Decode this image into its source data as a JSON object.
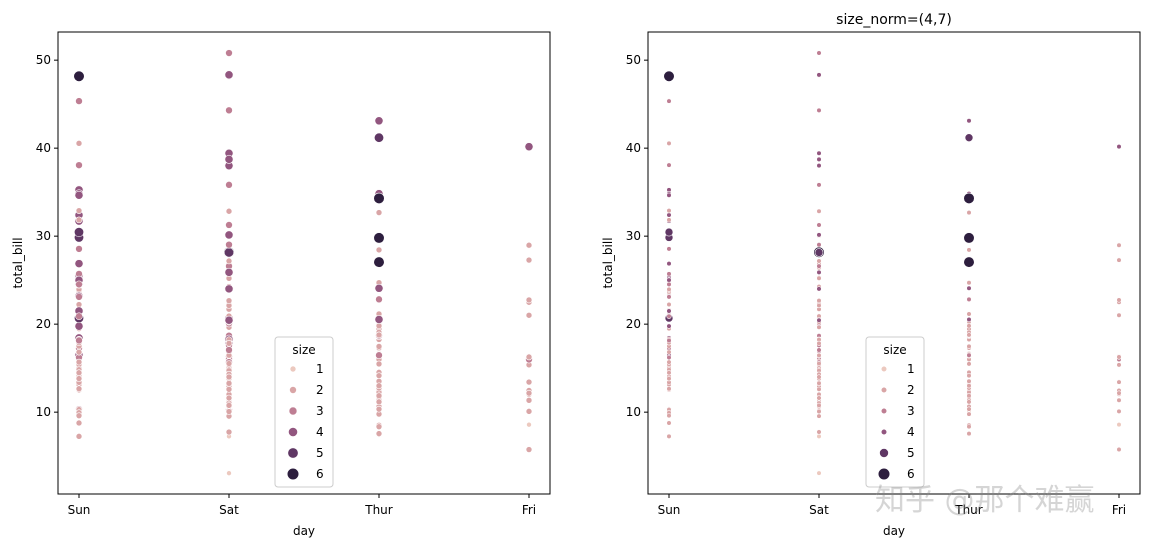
{
  "watermark": "知乎 @那个难赢",
  "palette": {
    "1": "#ecc9bf",
    "2": "#d9a5a6",
    "3": "#be7e93",
    "4": "#92567f",
    "5": "#5f3764",
    "6": "#2d1e3e"
  },
  "chart_data": [
    {
      "type": "scatter",
      "title": "",
      "xlabel": "day",
      "ylabel": "total_bill",
      "categories": [
        "Sun",
        "Sat",
        "Thur",
        "Fri"
      ],
      "ylim": [
        0.7,
        53.2
      ],
      "yticks": [
        10,
        20,
        30,
        40,
        50
      ],
      "grid": false,
      "legend": {
        "title": "size",
        "position": "lower-center",
        "entries": [
          "1",
          "2",
          "3",
          "4",
          "5",
          "6"
        ]
      },
      "size_marker_px": {
        "1": 5,
        "2": 6,
        "3": 7,
        "4": 8.2,
        "5": 9.4,
        "6": 10.6
      }
    },
    {
      "type": "scatter",
      "title": "size_norm=(4,7)",
      "xlabel": "day",
      "ylabel": "total_bill",
      "categories": [
        "Sun",
        "Sat",
        "Thur",
        "Fri"
      ],
      "ylim": [
        0.7,
        53.2
      ],
      "yticks": [
        10,
        20,
        30,
        40,
        50
      ],
      "grid": false,
      "legend": {
        "title": "size",
        "position": "lower-center",
        "entries": [
          "1",
          "2",
          "3",
          "4",
          "5",
          "6"
        ]
      },
      "size_marker_px": {
        "1": 4.6,
        "2": 4.6,
        "3": 4.6,
        "4": 4.6,
        "5": 8,
        "6": 10.6
      }
    }
  ],
  "points": {
    "Sun": [
      [
        16.99,
        2
      ],
      [
        10.34,
        3
      ],
      [
        21.01,
        3
      ],
      [
        23.68,
        2
      ],
      [
        24.59,
        4
      ],
      [
        25.29,
        4
      ],
      [
        8.77,
        2
      ],
      [
        26.88,
        4
      ],
      [
        15.04,
        2
      ],
      [
        14.78,
        2
      ],
      [
        10.27,
        2
      ],
      [
        35.26,
        4
      ],
      [
        15.42,
        2
      ],
      [
        18.43,
        4
      ],
      [
        14.83,
        2
      ],
      [
        21.58,
        2
      ],
      [
        17.46,
        2
      ],
      [
        13.94,
        2
      ],
      [
        9.68,
        2
      ],
      [
        30.4,
        4
      ],
      [
        18.29,
        2
      ],
      [
        22.23,
        2
      ],
      [
        32.4,
        4
      ],
      [
        28.55,
        3
      ],
      [
        18.04,
        2
      ],
      [
        12.54,
        2
      ],
      [
        10.29,
        2
      ],
      [
        34.81,
        4
      ],
      [
        9.94,
        2
      ],
      [
        25.56,
        4
      ],
      [
        19.49,
        2
      ],
      [
        38.07,
        3
      ],
      [
        23.95,
        2
      ],
      [
        25.71,
        3
      ],
      [
        17.31,
        2
      ],
      [
        29.93,
        4
      ],
      [
        14.07,
        2
      ],
      [
        13.13,
        2
      ],
      [
        17.26,
        3
      ],
      [
        24.55,
        4
      ],
      [
        19.77,
        4
      ],
      [
        29.85,
        5
      ],
      [
        48.17,
        6
      ],
      [
        25.0,
        4
      ],
      [
        13.39,
        2
      ],
      [
        16.49,
        4
      ],
      [
        21.5,
        4
      ],
      [
        12.66,
        2
      ],
      [
        16.21,
        3
      ],
      [
        13.81,
        2
      ],
      [
        17.51,
        2
      ],
      [
        24.52,
        3
      ],
      [
        20.76,
        2
      ],
      [
        31.71,
        4
      ],
      [
        7.25,
        2
      ],
      [
        31.85,
        2
      ],
      [
        16.82,
        2
      ],
      [
        32.9,
        2
      ],
      [
        17.89,
        2
      ],
      [
        14.48,
        2
      ],
      [
        9.6,
        2
      ],
      [
        34.63,
        2
      ],
      [
        34.65,
        4
      ],
      [
        23.33,
        2
      ],
      [
        45.35,
        3
      ],
      [
        23.17,
        4
      ],
      [
        40.55,
        2
      ],
      [
        20.69,
        5
      ],
      [
        20.9,
        3
      ],
      [
        30.46,
        5
      ],
      [
        18.15,
        3
      ],
      [
        23.1,
        3
      ],
      [
        15.69,
        2
      ]
    ],
    "Sat": [
      [
        10.33,
        3
      ],
      [
        16.29,
        3
      ],
      [
        16.97,
        3
      ],
      [
        20.65,
        3
      ],
      [
        17.92,
        2
      ],
      [
        20.29,
        2
      ],
      [
        15.77,
        2
      ],
      [
        39.42,
        4
      ],
      [
        19.82,
        2
      ],
      [
        17.81,
        4
      ],
      [
        13.37,
        2
      ],
      [
        12.69,
        2
      ],
      [
        21.7,
        2
      ],
      [
        19.65,
        2
      ],
      [
        9.55,
        2
      ],
      [
        18.35,
        4
      ],
      [
        15.06,
        2
      ],
      [
        20.69,
        4
      ],
      [
        17.78,
        2
      ],
      [
        24.06,
        3
      ],
      [
        16.31,
        3
      ],
      [
        16.93,
        3
      ],
      [
        18.69,
        3
      ],
      [
        31.27,
        3
      ],
      [
        16.04,
        3
      ],
      [
        38.01,
        4
      ],
      [
        26.41,
        2
      ],
      [
        11.24,
        2
      ],
      [
        48.27,
        4
      ],
      [
        20.29,
        2
      ],
      [
        13.81,
        2
      ],
      [
        11.02,
        2
      ],
      [
        18.29,
        4
      ],
      [
        17.59,
        3
      ],
      [
        20.08,
        3
      ],
      [
        16.45,
        2
      ],
      [
        3.07,
        1
      ],
      [
        20.23,
        2
      ],
      [
        15.01,
        2
      ],
      [
        12.02,
        2
      ],
      [
        17.07,
        3
      ],
      [
        26.86,
        2
      ],
      [
        25.28,
        2
      ],
      [
        14.73,
        2
      ],
      [
        10.51,
        2
      ],
      [
        17.92,
        2
      ],
      [
        44.3,
        3
      ],
      [
        22.42,
        2
      ],
      [
        20.92,
        2
      ],
      [
        15.36,
        2
      ],
      [
        20.49,
        2
      ],
      [
        25.21,
        2
      ],
      [
        18.24,
        2
      ],
      [
        14.31,
        2
      ],
      [
        14.0,
        2
      ],
      [
        7.25,
        1
      ],
      [
        10.59,
        2
      ],
      [
        10.63,
        2
      ],
      [
        50.81,
        3
      ],
      [
        15.81,
        2
      ],
      [
        26.59,
        3
      ],
      [
        38.73,
        4
      ],
      [
        24.27,
        2
      ],
      [
        12.76,
        2
      ],
      [
        30.06,
        3
      ],
      [
        25.89,
        4
      ],
      [
        48.33,
        4
      ],
      [
        13.27,
        2
      ],
      [
        28.17,
        6
      ],
      [
        12.9,
        2
      ],
      [
        28.15,
        5
      ],
      [
        11.59,
        2
      ],
      [
        7.74,
        2
      ],
      [
        30.14,
        4
      ],
      [
        20.45,
        4
      ],
      [
        13.28,
        2
      ],
      [
        22.12,
        2
      ],
      [
        24.01,
        4
      ],
      [
        15.69,
        3
      ],
      [
        11.61,
        2
      ],
      [
        10.77,
        2
      ],
      [
        15.53,
        2
      ],
      [
        10.07,
        2
      ],
      [
        12.6,
        2
      ],
      [
        32.83,
        2
      ],
      [
        35.83,
        3
      ],
      [
        29.03,
        3
      ],
      [
        27.18,
        2
      ],
      [
        22.67,
        2
      ],
      [
        17.82,
        2
      ]
    ],
    "Thur": [
      [
        27.2,
        4
      ],
      [
        22.76,
        2
      ],
      [
        17.29,
        2
      ],
      [
        19.44,
        2
      ],
      [
        16.66,
        2
      ],
      [
        10.07,
        1
      ],
      [
        32.68,
        2
      ],
      [
        15.98,
        2
      ],
      [
        34.83,
        4
      ],
      [
        13.03,
        2
      ],
      [
        18.28,
        2
      ],
      [
        24.71,
        2
      ],
      [
        21.16,
        2
      ],
      [
        10.65,
        2
      ],
      [
        12.43,
        2
      ],
      [
        24.08,
        4
      ],
      [
        11.69,
        2
      ],
      [
        13.42,
        2
      ],
      [
        14.26,
        2
      ],
      [
        15.95,
        2
      ],
      [
        12.48,
        2
      ],
      [
        29.8,
        6
      ],
      [
        8.52,
        2
      ],
      [
        14.52,
        2
      ],
      [
        11.38,
        2
      ],
      [
        22.82,
        3
      ],
      [
        19.08,
        2
      ],
      [
        20.27,
        2
      ],
      [
        11.17,
        2
      ],
      [
        12.26,
        2
      ],
      [
        18.26,
        2
      ],
      [
        8.51,
        2
      ],
      [
        10.33,
        2
      ],
      [
        14.15,
        2
      ],
      [
        16.0,
        2
      ],
      [
        13.16,
        2
      ],
      [
        17.47,
        2
      ],
      [
        34.3,
        6
      ],
      [
        41.19,
        5
      ],
      [
        27.05,
        6
      ],
      [
        16.43,
        2
      ],
      [
        8.35,
        2
      ],
      [
        18.64,
        3
      ],
      [
        11.87,
        2
      ],
      [
        9.78,
        2
      ],
      [
        7.51,
        2
      ],
      [
        19.81,
        2
      ],
      [
        28.44,
        2
      ],
      [
        15.48,
        2
      ],
      [
        16.58,
        2
      ],
      [
        7.56,
        2
      ],
      [
        10.34,
        2
      ],
      [
        43.11,
        4
      ],
      [
        13.0,
        2
      ],
      [
        13.51,
        2
      ],
      [
        18.71,
        3
      ],
      [
        12.74,
        2
      ],
      [
        13.0,
        2
      ],
      [
        16.4,
        2
      ],
      [
        20.53,
        4
      ],
      [
        16.47,
        3
      ],
      [
        18.78,
        2
      ]
    ],
    "Fri": [
      [
        28.97,
        2
      ],
      [
        22.49,
        2
      ],
      [
        5.75,
        2
      ],
      [
        16.32,
        2
      ],
      [
        22.75,
        2
      ],
      [
        40.17,
        4
      ],
      [
        27.28,
        2
      ],
      [
        12.03,
        2
      ],
      [
        21.01,
        2
      ],
      [
        12.46,
        2
      ],
      [
        11.35,
        2
      ],
      [
        15.38,
        2
      ],
      [
        12.16,
        2
      ],
      [
        13.42,
        2
      ],
      [
        8.58,
        1
      ],
      [
        15.98,
        3
      ],
      [
        13.42,
        2
      ],
      [
        16.27,
        2
      ],
      [
        10.09,
        2
      ]
    ]
  }
}
